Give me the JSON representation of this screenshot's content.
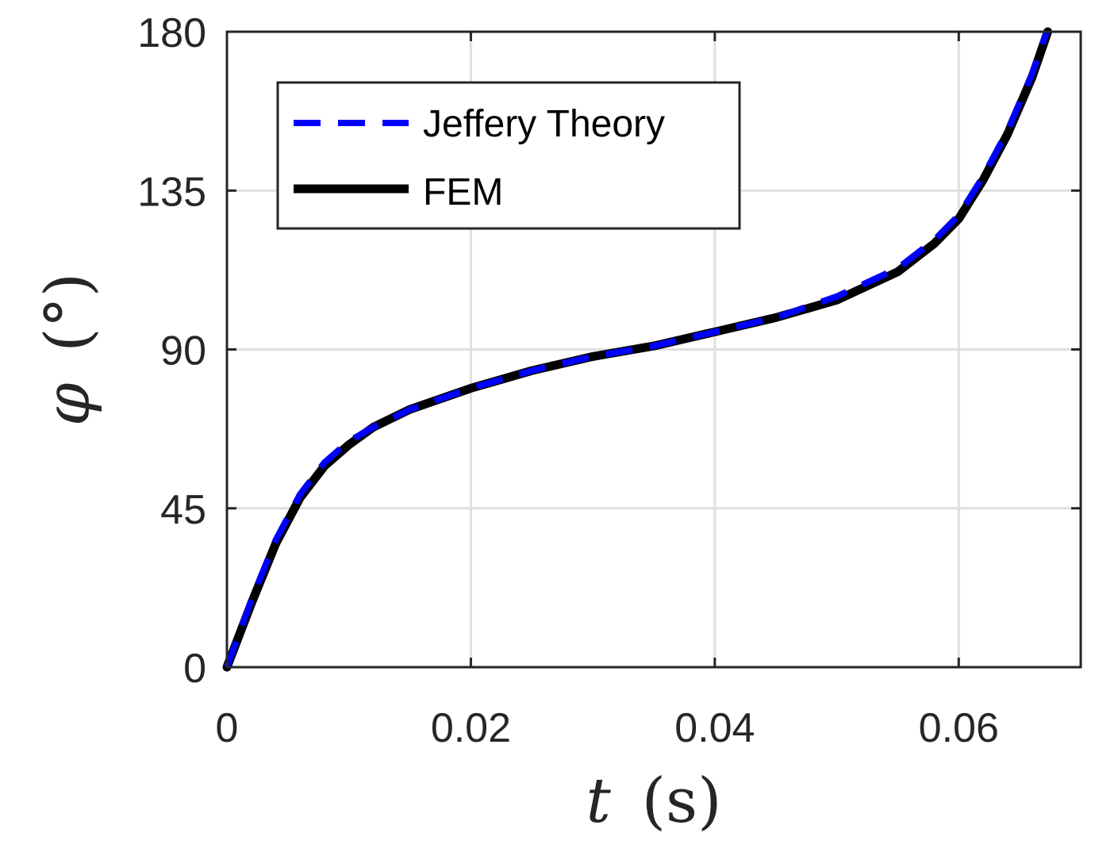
{
  "chart_data": {
    "type": "line",
    "xlabel_var": "t",
    "xlabel_unit": "(s)",
    "ylabel_var": "φ",
    "ylabel_unit": "(°)",
    "xlim": [
      0,
      0.07
    ],
    "ylim": [
      0,
      180
    ],
    "xticks": [
      0,
      0.02,
      0.04,
      0.06
    ],
    "xtick_labels": [
      "0",
      "0.02",
      "0.04",
      "0.06"
    ],
    "yticks": [
      0,
      45,
      90,
      135,
      180
    ],
    "ytick_labels": [
      "0",
      "45",
      "90",
      "135",
      "180"
    ],
    "grid": true,
    "legend_position": "top-left",
    "series": [
      {
        "name": "Jeffery Theory",
        "color": "#0000ff",
        "style": "dashed",
        "x": [
          0,
          0.002,
          0.004,
          0.006,
          0.008,
          0.01,
          0.012,
          0.015,
          0.02,
          0.025,
          0.03,
          0.035,
          0.04,
          0.045,
          0.05,
          0.055,
          0.058,
          0.06,
          0.062,
          0.064,
          0.066,
          0.0672
        ],
        "y": [
          0,
          19,
          36,
          49,
          58,
          64,
          68,
          73,
          79,
          84,
          88,
          91,
          95,
          99,
          105,
          113,
          121,
          128,
          139,
          152,
          168,
          180
        ]
      },
      {
        "name": "FEM",
        "color": "#000000",
        "style": "solid",
        "x": [
          0,
          0.002,
          0.004,
          0.006,
          0.008,
          0.01,
          0.012,
          0.015,
          0.02,
          0.025,
          0.03,
          0.035,
          0.04,
          0.045,
          0.05,
          0.055,
          0.058,
          0.06,
          0.062,
          0.064,
          0.066,
          0.0673
        ],
        "y": [
          0,
          18,
          35,
          48,
          57,
          63,
          68,
          73,
          79,
          84,
          88,
          91,
          95,
          99,
          104,
          112,
          120,
          127,
          138,
          151,
          167,
          180
        ]
      }
    ]
  }
}
